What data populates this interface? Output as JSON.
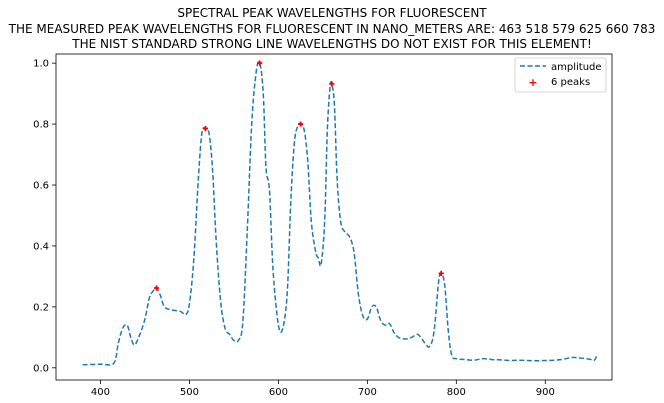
{
  "chart_data": {
    "type": "line",
    "title_lines": [
      "SPECTRAL PEAK WAVELENGTHS FOR FLUORESCENT",
      "THE MEASURED PEAK WAVELENGTHS FOR FLUORESCENT IN NANO_METERS ARE: 463 518 579 625 660 783",
      "THE NIST STANDARD STRONG LINE WAVELENGTHS DO NOT EXIST FOR THIS ELEMENT!"
    ],
    "xlim": [
      350,
      975
    ],
    "ylim": [
      -0.04,
      1.03
    ],
    "x_ticks": [
      400,
      500,
      600,
      700,
      800,
      900
    ],
    "y_ticks": [
      0.0,
      0.2,
      0.4,
      0.6,
      0.8,
      1.0
    ],
    "grid": false,
    "legend_placement": "upper-right",
    "series": [
      {
        "name": "amplitude",
        "style": "dashed-line",
        "color": "#1f77b4",
        "points": [
          [
            380,
            0.01
          ],
          [
            400,
            0.012
          ],
          [
            415,
            0.015
          ],
          [
            420,
            0.08
          ],
          [
            425,
            0.13
          ],
          [
            430,
            0.14
          ],
          [
            434,
            0.1
          ],
          [
            438,
            0.075
          ],
          [
            443,
            0.1
          ],
          [
            450,
            0.16
          ],
          [
            455,
            0.23
          ],
          [
            460,
            0.255
          ],
          [
            463,
            0.262
          ],
          [
            467,
            0.24
          ],
          [
            472,
            0.2
          ],
          [
            480,
            0.19
          ],
          [
            490,
            0.185
          ],
          [
            496,
            0.175
          ],
          [
            500,
            0.21
          ],
          [
            505,
            0.36
          ],
          [
            510,
            0.62
          ],
          [
            514,
            0.77
          ],
          [
            518,
            0.785
          ],
          [
            522,
            0.77
          ],
          [
            526,
            0.65
          ],
          [
            530,
            0.42
          ],
          [
            535,
            0.22
          ],
          [
            540,
            0.13
          ],
          [
            545,
            0.11
          ],
          [
            550,
            0.09
          ],
          [
            555,
            0.09
          ],
          [
            560,
            0.15
          ],
          [
            565,
            0.45
          ],
          [
            570,
            0.8
          ],
          [
            575,
            0.97
          ],
          [
            579,
            1.0
          ],
          [
            583,
            0.9
          ],
          [
            586,
            0.66
          ],
          [
            590,
            0.58
          ],
          [
            594,
            0.32
          ],
          [
            600,
            0.14
          ],
          [
            605,
            0.13
          ],
          [
            610,
            0.25
          ],
          [
            614,
            0.55
          ],
          [
            618,
            0.74
          ],
          [
            622,
            0.795
          ],
          [
            625,
            0.8
          ],
          [
            629,
            0.78
          ],
          [
            633,
            0.68
          ],
          [
            637,
            0.48
          ],
          [
            642,
            0.38
          ],
          [
            645,
            0.36
          ],
          [
            648,
            0.34
          ],
          [
            652,
            0.48
          ],
          [
            655,
            0.78
          ],
          [
            658,
            0.92
          ],
          [
            660,
            0.932
          ],
          [
            663,
            0.86
          ],
          [
            666,
            0.62
          ],
          [
            670,
            0.48
          ],
          [
            675,
            0.445
          ],
          [
            680,
            0.43
          ],
          [
            685,
            0.38
          ],
          [
            690,
            0.24
          ],
          [
            695,
            0.17
          ],
          [
            700,
            0.16
          ],
          [
            705,
            0.2
          ],
          [
            710,
            0.2
          ],
          [
            715,
            0.155
          ],
          [
            720,
            0.14
          ],
          [
            725,
            0.145
          ],
          [
            730,
            0.115
          ],
          [
            735,
            0.1
          ],
          [
            740,
            0.095
          ],
          [
            745,
            0.095
          ],
          [
            750,
            0.1
          ],
          [
            756,
            0.11
          ],
          [
            760,
            0.1
          ],
          [
            765,
            0.08
          ],
          [
            770,
            0.07
          ],
          [
            775,
            0.12
          ],
          [
            780,
            0.28
          ],
          [
            783,
            0.31
          ],
          [
            787,
            0.27
          ],
          [
            791,
            0.12
          ],
          [
            795,
            0.04
          ],
          [
            800,
            0.03
          ],
          [
            810,
            0.027
          ],
          [
            820,
            0.025
          ],
          [
            830,
            0.03
          ],
          [
            840,
            0.027
          ],
          [
            850,
            0.026
          ],
          [
            860,
            0.024
          ],
          [
            870,
            0.025
          ],
          [
            880,
            0.024
          ],
          [
            890,
            0.023
          ],
          [
            900,
            0.024
          ],
          [
            910,
            0.025
          ],
          [
            920,
            0.028
          ],
          [
            930,
            0.034
          ],
          [
            940,
            0.032
          ],
          [
            950,
            0.028
          ],
          [
            955,
            0.025
          ],
          [
            958,
            0.04
          ]
        ]
      },
      {
        "name": "6 peaks",
        "style": "markers",
        "color": "#ff0000",
        "points": [
          [
            463,
            0.262
          ],
          [
            518,
            0.785
          ],
          [
            579,
            1.0
          ],
          [
            625,
            0.8
          ],
          [
            660,
            0.932
          ],
          [
            783,
            0.31
          ]
        ]
      }
    ]
  }
}
